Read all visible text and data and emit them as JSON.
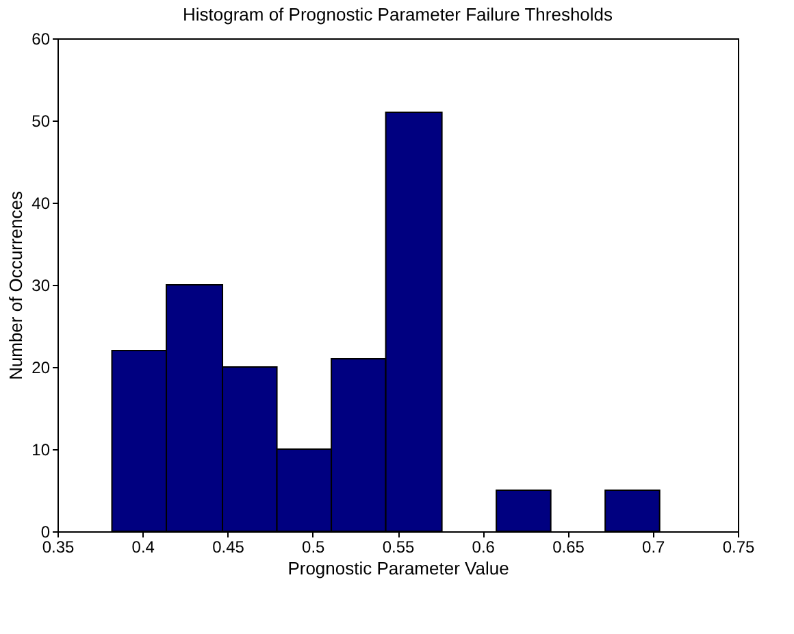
{
  "chart_data": {
    "type": "histogram",
    "title": "Histogram of Prognostic Parameter Failure Thresholds",
    "xlabel": "Prognostic Parameter Value",
    "ylabel": "Number of Occurrences",
    "bins": [
      0.382,
      0.414,
      0.447,
      0.479,
      0.511,
      0.543,
      0.576,
      0.608,
      0.64,
      0.672,
      0.704
    ],
    "values": [
      22,
      30,
      20,
      10,
      21,
      51,
      0,
      5,
      0,
      5
    ],
    "color": "#000080",
    "xlim": [
      0.35,
      0.75
    ],
    "xticks": [
      0.35,
      0.4,
      0.45,
      0.5,
      0.55,
      0.6,
      0.65,
      0.7,
      0.75
    ],
    "ylim": [
      0,
      60
    ],
    "yticks": [
      0,
      10,
      20,
      30,
      40,
      50,
      60
    ],
    "grid": false
  }
}
